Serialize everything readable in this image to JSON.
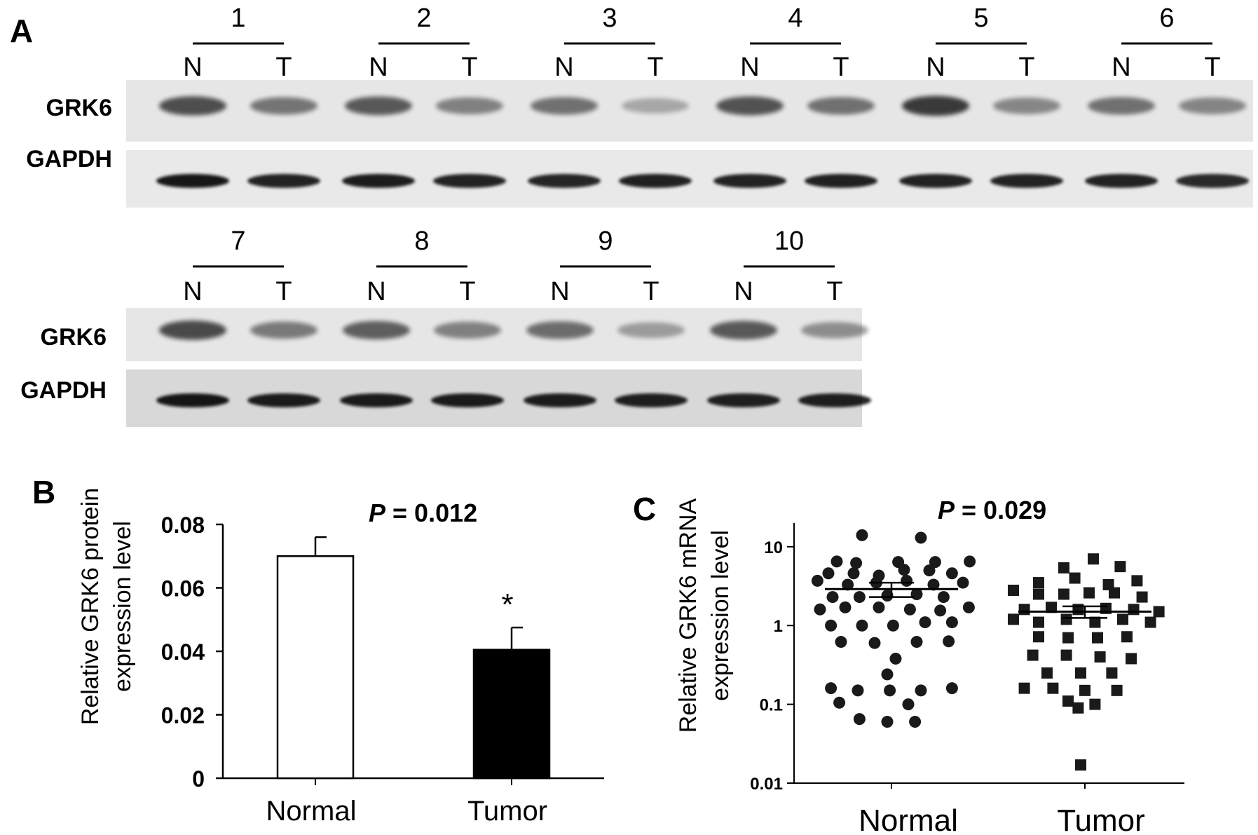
{
  "panels": {
    "A": {
      "letter": "A",
      "rows": [
        {
          "samples": [
            "1",
            "2",
            "3",
            "4",
            "5",
            "6"
          ],
          "normal": [
            0.78,
            0.72,
            0.6,
            0.75,
            0.88,
            0.6
          ],
          "tumor": [
            0.58,
            0.52,
            0.32,
            0.6,
            0.48,
            0.5
          ],
          "gapdh": [
            [
              0.9,
              0.85
            ],
            [
              0.88,
              0.85
            ],
            [
              0.84,
              0.86
            ],
            [
              0.85,
              0.86
            ],
            [
              0.85,
              0.85
            ],
            [
              0.85,
              0.82
            ]
          ]
        },
        {
          "samples": [
            "7",
            "8",
            "9",
            "10"
          ],
          "normal": [
            0.8,
            0.7,
            0.62,
            0.72
          ],
          "tumor": [
            0.55,
            0.52,
            0.38,
            0.45
          ],
          "gapdh": [
            [
              0.9,
              0.88
            ],
            [
              0.88,
              0.88
            ],
            [
              0.87,
              0.86
            ],
            [
              0.86,
              0.86
            ]
          ]
        }
      ],
      "normal_label": "N",
      "tumor_label": "T",
      "band_labels": {
        "target": "GRK6",
        "control": "GAPDH"
      }
    },
    "B": {
      "letter": "B"
    },
    "C": {
      "letter": "C"
    }
  },
  "chart_data": [
    {
      "type": "bar",
      "panel": "B",
      "categories": [
        "Normal",
        "Tumor"
      ],
      "values": [
        0.07,
        0.0405
      ],
      "errors": [
        0.006,
        0.007
      ],
      "fills": [
        "#ffffff",
        "#000000"
      ],
      "title": "P = 0.012",
      "p_symbol": "P",
      "p_text": " = 0.012",
      "significance": "*",
      "ylabel_line1": "Relative GRK6 protein",
      "ylabel_line2": "expression level",
      "xlabel": "",
      "ylim": [
        0,
        0.08
      ],
      "yticks": [
        "0",
        "0.02",
        "0.04",
        "0.06",
        "0.08"
      ]
    },
    {
      "type": "scatter",
      "panel": "C",
      "categories": [
        "Normal",
        "Tumor"
      ],
      "title": "P = 0.029",
      "p_symbol": "P",
      "p_text": " = 0.029",
      "ylabel_line1": "Relative GRK6 mRNA",
      "ylabel_line2": "expression level",
      "yscale": "log",
      "ylim": [
        0.01,
        20
      ],
      "yticks": [
        "0.01",
        "0.1",
        "1",
        "10"
      ],
      "series": [
        {
          "name": "Normal",
          "marker": "circle",
          "mean": 2.9,
          "sem": 0.6,
          "points": [
            [
              -0.35,
              14
            ],
            [
              0.35,
              13
            ],
            [
              -0.65,
              6.5
            ],
            [
              -0.42,
              6.2
            ],
            [
              0.08,
              6.4
            ],
            [
              0.52,
              6.4
            ],
            [
              0.93,
              6.5
            ],
            [
              -0.75,
              4.6
            ],
            [
              -0.45,
              4.6
            ],
            [
              -0.15,
              4.3
            ],
            [
              0.15,
              5.1
            ],
            [
              0.45,
              5.0
            ],
            [
              0.72,
              4.6
            ],
            [
              -0.88,
              3.7
            ],
            [
              -0.52,
              3.3
            ],
            [
              -0.18,
              3.5
            ],
            [
              0.18,
              3.7
            ],
            [
              0.5,
              3.3
            ],
            [
              0.85,
              3.5
            ],
            [
              -0.7,
              2.3
            ],
            [
              -0.38,
              2.3
            ],
            [
              -0.05,
              2.4
            ],
            [
              0.3,
              2.5
            ],
            [
              0.62,
              2.3
            ],
            [
              -0.85,
              1.6
            ],
            [
              -0.55,
              1.7
            ],
            [
              -0.15,
              1.7
            ],
            [
              0.22,
              1.6
            ],
            [
              0.58,
              1.55
            ],
            [
              0.92,
              1.7
            ],
            [
              -0.72,
              1.0
            ],
            [
              -0.35,
              1.0
            ],
            [
              0.02,
              1.0
            ],
            [
              0.4,
              1.1
            ],
            [
              0.72,
              1.1
            ],
            [
              -0.6,
              0.62
            ],
            [
              -0.2,
              0.6
            ],
            [
              0.3,
              0.62
            ],
            [
              0.68,
              0.63
            ],
            [
              0.05,
              0.38
            ],
            [
              -0.05,
              0.24
            ],
            [
              -0.72,
              0.16
            ],
            [
              -0.4,
              0.15
            ],
            [
              -0.02,
              0.15
            ],
            [
              0.35,
              0.15
            ],
            [
              0.72,
              0.16
            ],
            [
              -0.62,
              0.105
            ],
            [
              0.2,
              0.1
            ],
            [
              -0.38,
              0.065
            ],
            [
              -0.05,
              0.06
            ],
            [
              0.28,
              0.06
            ]
          ]
        },
        {
          "name": "Tumor",
          "marker": "square",
          "mean": 1.5,
          "sem": 0.25,
          "points": [
            [
              0.1,
              7.0
            ],
            [
              -0.25,
              5.4
            ],
            [
              0.42,
              5.6
            ],
            [
              -0.55,
              3.5
            ],
            [
              -0.12,
              4.0
            ],
            [
              0.28,
              3.3
            ],
            [
              0.62,
              3.7
            ],
            [
              -0.85,
              2.8
            ],
            [
              -0.55,
              2.5
            ],
            [
              -0.25,
              2.5
            ],
            [
              0.05,
              2.6
            ],
            [
              0.35,
              2.6
            ],
            [
              0.68,
              2.3
            ],
            [
              -0.72,
              1.6
            ],
            [
              -0.4,
              1.7
            ],
            [
              -0.08,
              1.6
            ],
            [
              0.25,
              1.65
            ],
            [
              0.58,
              1.6
            ],
            [
              0.88,
              1.5
            ],
            [
              -0.85,
              1.2
            ],
            [
              -0.55,
              1.1
            ],
            [
              -0.22,
              1.2
            ],
            [
              0.12,
              1.1
            ],
            [
              0.45,
              1.2
            ],
            [
              0.78,
              1.1
            ],
            [
              -0.55,
              0.72
            ],
            [
              -0.2,
              0.7
            ],
            [
              0.15,
              0.7
            ],
            [
              0.5,
              0.72
            ],
            [
              -0.62,
              0.42
            ],
            [
              -0.22,
              0.42
            ],
            [
              0.18,
              0.4
            ],
            [
              0.55,
              0.38
            ],
            [
              -0.45,
              0.25
            ],
            [
              -0.05,
              0.25
            ],
            [
              0.32,
              0.25
            ],
            [
              -0.72,
              0.16
            ],
            [
              -0.38,
              0.16
            ],
            [
              0.0,
              0.15
            ],
            [
              0.38,
              0.15
            ],
            [
              -0.2,
              0.11
            ],
            [
              0.12,
              0.1
            ],
            [
              -0.08,
              0.09
            ],
            [
              -0.05,
              0.017
            ]
          ]
        }
      ]
    }
  ]
}
